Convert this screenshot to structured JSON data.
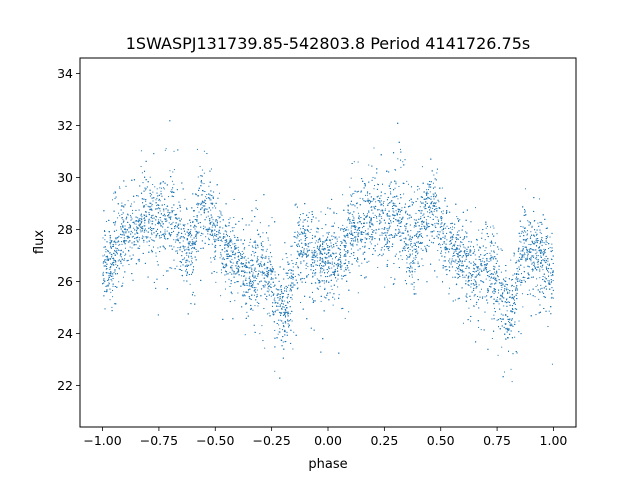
{
  "chart_data": {
    "type": "scatter",
    "title": "1SWASPJ131739.85-542803.8 Period 4141726.75s",
    "xlabel": "phase",
    "ylabel": "flux",
    "xlim": [
      -1.1,
      1.1
    ],
    "ylim": [
      20.4,
      34.6
    ],
    "xticks": [
      -1.0,
      -0.75,
      -0.5,
      -0.25,
      0.0,
      0.25,
      0.5,
      0.75,
      1.0
    ],
    "xtick_labels": [
      "−1.00",
      "−0.75",
      "−0.50",
      "−0.25",
      "0.00",
      "0.25",
      "0.50",
      "0.75",
      "1.00"
    ],
    "yticks": [
      22,
      24,
      26,
      28,
      30,
      32,
      34
    ],
    "ytick_labels": [
      "22",
      "24",
      "26",
      "28",
      "30",
      "32",
      "34"
    ],
    "grid": false,
    "point_color": "#1f77b4",
    "series": [
      {
        "name": "",
        "phase_range": [
          -1.0,
          1.0
        ],
        "profile_phase": [
          0.0,
          0.02,
          0.05,
          0.08,
          0.1,
          0.13,
          0.15,
          0.18,
          0.2,
          0.23,
          0.25,
          0.28,
          0.3,
          0.33,
          0.35,
          0.38,
          0.4,
          0.43,
          0.45,
          0.48,
          0.5,
          0.53,
          0.55,
          0.58,
          0.6,
          0.63,
          0.65,
          0.68,
          0.7,
          0.73,
          0.75,
          0.78,
          0.8,
          0.83,
          0.85,
          0.88,
          0.9,
          0.93,
          0.95,
          0.98,
          1.0
        ],
        "profile_flux": [
          26.6,
          26.7,
          27.0,
          27.4,
          27.8,
          28.0,
          28.2,
          28.4,
          28.5,
          28.4,
          28.3,
          28.5,
          28.6,
          28.2,
          27.6,
          27.3,
          27.6,
          28.5,
          29.0,
          28.5,
          27.8,
          27.3,
          27.2,
          27.0,
          26.8,
          26.5,
          26.2,
          26.4,
          26.6,
          26.2,
          25.8,
          25.2,
          24.7,
          25.4,
          26.8,
          27.4,
          27.2,
          27.0,
          26.8,
          26.6,
          26.6
        ],
        "upper_envelope": [
          29.5,
          29.6,
          29.8,
          30.2,
          30.6,
          30.8,
          31.0,
          31.2,
          31.3,
          31.0,
          30.8,
          31.5,
          32.5,
          31.5,
          30.0,
          29.8,
          30.2,
          31.2,
          31.6,
          31.2,
          30.4,
          29.8,
          29.6,
          29.4,
          29.2,
          29.0,
          28.8,
          29.2,
          29.6,
          29.2,
          28.6,
          28.2,
          27.6,
          28.2,
          29.4,
          30.0,
          29.8,
          29.6,
          29.2,
          29.2,
          29.5
        ],
        "lower_envelope": [
          22.5,
          22.6,
          23.2,
          24.0,
          24.5,
          25.2,
          25.5,
          25.8,
          25.9,
          25.6,
          25.2,
          25.4,
          25.2,
          25.0,
          24.8,
          24.5,
          24.8,
          25.6,
          26.2,
          25.6,
          25.0,
          24.6,
          24.2,
          24.0,
          23.8,
          23.6,
          23.2,
          23.0,
          23.4,
          23.2,
          22.8,
          22.2,
          21.8,
          22.4,
          23.6,
          24.2,
          24.0,
          23.8,
          23.4,
          23.0,
          22.5
        ],
        "n_points": 9000
      }
    ]
  }
}
